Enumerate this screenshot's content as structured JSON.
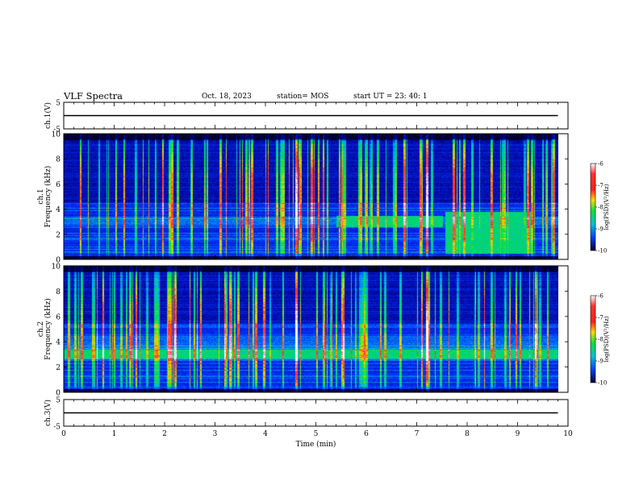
{
  "header": {
    "title": "VLF Spectra",
    "date": "Oct. 18, 2023",
    "station": "station= MOS",
    "start": "start UT =  23: 40: 1"
  },
  "chart_data": [
    {
      "type": "line",
      "panel": "ch1-waveform",
      "ylabel": "ch.1(V)",
      "ylim": [
        -5,
        5
      ],
      "yticks": [
        5,
        -5
      ],
      "xlim": [
        0,
        10
      ],
      "series": [
        {
          "x": [
            0,
            9.8
          ],
          "y": [
            0,
            0
          ]
        }
      ]
    },
    {
      "type": "heatmap",
      "panel": "ch1-spectrogram",
      "ylabel": "ch.1  Frequency (kHz)",
      "ylim": [
        0,
        10
      ],
      "yticks": [
        0,
        2,
        4,
        6,
        8,
        10
      ],
      "xlim": [
        0,
        10
      ],
      "data_extent_min": 9.8,
      "colorbar": {
        "label": "log(PSD)(V²/Hz)",
        "range": [
          -10,
          -6
        ],
        "ticks": [
          -6,
          -7,
          -8,
          -9,
          -10
        ]
      },
      "features": [
        {
          "kind": "band",
          "from_min": 5.4,
          "to_min": 7.5,
          "freq_khz": [
            2.6,
            3.5
          ],
          "level": -8
        },
        {
          "kind": "band",
          "from_min": 7.55,
          "to_min": 9.25,
          "freq_khz": [
            0.5,
            3.8
          ],
          "level": -8
        },
        {
          "kind": "spike",
          "at_min": 4.6,
          "level": -7
        },
        {
          "kind": "spike",
          "at_min": 7.2,
          "level": -7
        }
      ]
    },
    {
      "type": "heatmap",
      "panel": "ch2-spectrogram",
      "ylabel": "ch.2  Frequency (kHz)",
      "ylim": [
        0,
        10
      ],
      "yticks": [
        0,
        2,
        4,
        6,
        8,
        10
      ],
      "xlim": [
        0,
        10
      ],
      "data_extent_min": 9.8,
      "colorbar": {
        "label": "log(PSD)(V²/Hz)",
        "range": [
          -10,
          -6
        ],
        "ticks": [
          -6,
          -7,
          -8,
          -9,
          -10
        ]
      },
      "features": [
        {
          "kind": "band",
          "from_min": 0,
          "to_min": 9.8,
          "freq_khz": [
            2.7,
            3.4
          ],
          "level": -8
        },
        {
          "kind": "spike",
          "at_min": 4.6,
          "level": -7
        },
        {
          "kind": "spike",
          "at_min": 7.2,
          "level": -7
        }
      ]
    },
    {
      "type": "line",
      "panel": "ch3-waveform",
      "ylabel": "ch.3(V)",
      "ylim": [
        -5,
        5
      ],
      "yticks": [
        5,
        -5
      ],
      "xlim": [
        0,
        10
      ],
      "xlabel": "Time  (min)",
      "xticks": [
        0,
        1,
        2,
        3,
        4,
        5,
        6,
        7,
        8,
        9,
        10
      ],
      "series": [
        {
          "x": [
            0,
            9.8
          ],
          "y": [
            0,
            0
          ]
        }
      ]
    }
  ]
}
